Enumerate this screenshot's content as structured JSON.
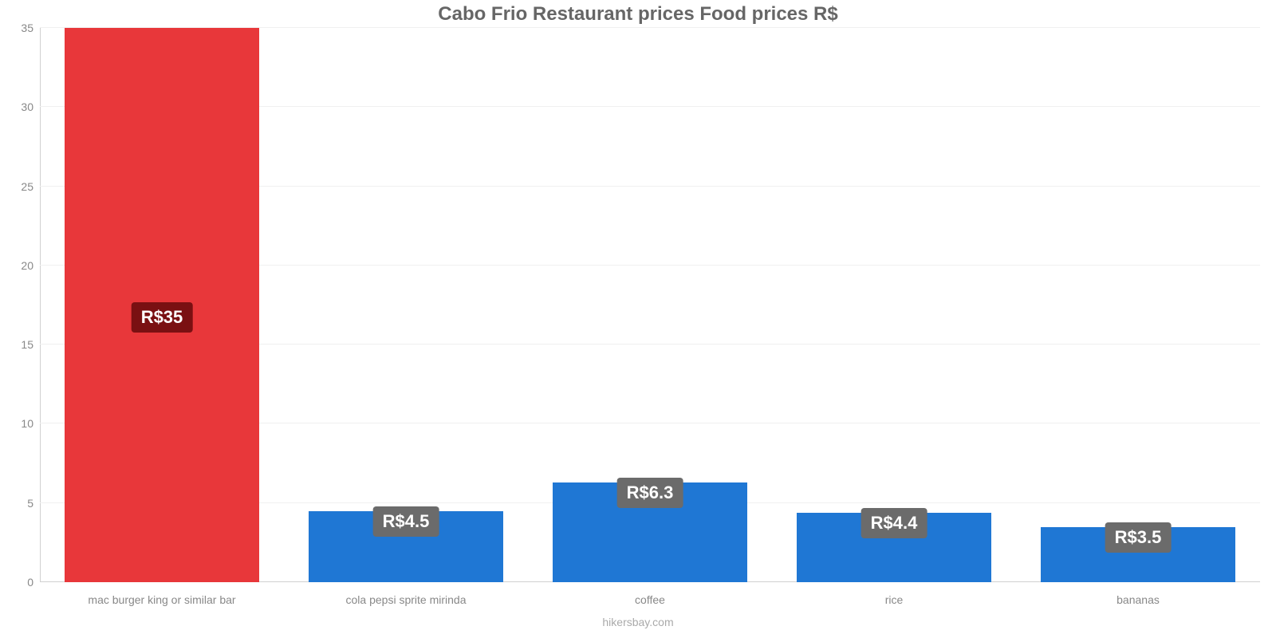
{
  "chart": {
    "type": "bar",
    "title": "Cabo Frio Restaurant prices Food prices R$",
    "title_color": "#666666",
    "title_fontsize": 24,
    "background_color": "#ffffff",
    "grid_color": "#f0f0f0",
    "axis_line_color": "#d0d0d0",
    "tick_label_color": "#888888",
    "tick_fontsize": 14,
    "credit": "hikersbay.com",
    "credit_color": "#aaaaaa",
    "credit_fontsize": 14,
    "ylim": [
      0,
      35
    ],
    "ytick_step": 5,
    "yticks": [
      0,
      5,
      10,
      15,
      20,
      25,
      30,
      35
    ],
    "bar_width_pct": 80,
    "categories": [
      "mac burger king or similar bar",
      "cola pepsi sprite mirinda",
      "coffee",
      "rice",
      "bananas"
    ],
    "values": [
      35,
      4.5,
      6.3,
      4.4,
      3.5
    ],
    "value_labels": [
      "R$35",
      "R$4.5",
      "R$6.3",
      "R$4.4",
      "R$3.5"
    ],
    "bar_colors": [
      "#e8373a",
      "#1f77d4",
      "#1f77d4",
      "#1f77d4",
      "#1f77d4"
    ],
    "value_label_bg": [
      "#7a1012",
      "#6b6b6b",
      "#6b6b6b",
      "#6b6b6b",
      "#6b6b6b"
    ],
    "value_label_text_color": "#ffffff",
    "value_label_fontsize": 22,
    "value_label_y_offsets_pct": [
      45,
      0,
      0,
      0,
      0
    ]
  }
}
